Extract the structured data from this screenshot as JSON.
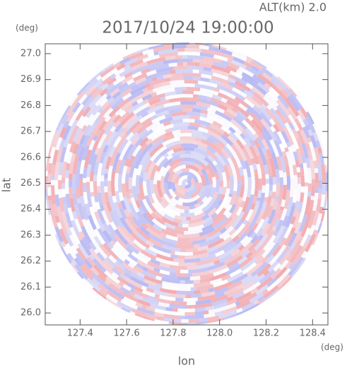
{
  "chart_data": {
    "type": "radar-ppi",
    "altitude_label": "ALT(km) 2.0",
    "title": "2017/10/24 19:00:00",
    "ylabel": "lat",
    "xlabel": "lon",
    "y_unit": "(deg)",
    "x_unit": "(deg)",
    "xlim": [
      127.25,
      128.466
    ],
    "ylim": [
      25.954,
      27.038
    ],
    "xticks": [
      127.4,
      127.6,
      127.8,
      {
        "value": 128,
        "label": "128.0"
      },
      128.2,
      128.4
    ],
    "yticks": [
      {
        "value": 26,
        "label": "26.0"
      },
      26.1,
      26.2,
      26.3,
      26.4,
      26.5,
      26.6,
      26.7,
      26.8,
      26.9,
      {
        "value": 27,
        "label": "27.0"
      }
    ]
  }
}
